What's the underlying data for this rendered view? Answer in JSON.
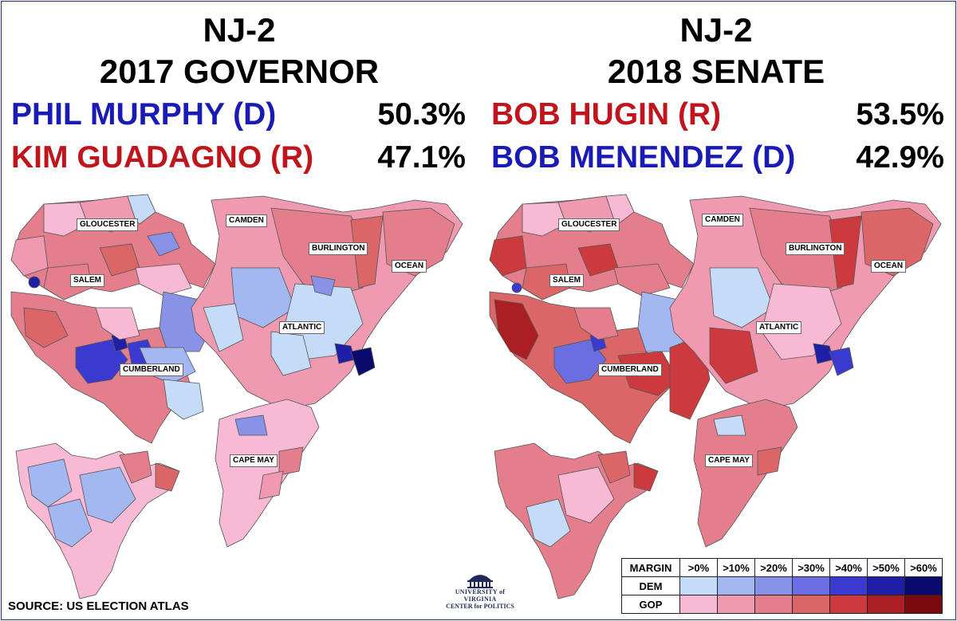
{
  "left_panel": {
    "title_line1": "NJ-2",
    "title_line2": "2017 GOVERNOR",
    "candidates": [
      {
        "name": "PHIL MURPHY (D)",
        "pct": "50.3%",
        "color": "#1a1ab4"
      },
      {
        "name": "KIM GUADAGNO (R)",
        "pct": "47.1%",
        "color": "#c0151c"
      }
    ],
    "county_labels": [
      "GLOUCESTER",
      "CAMDEN",
      "BURLINGTON",
      "OCEAN",
      "SALEM",
      "ATLANTIC",
      "CUMBERLAND",
      "CAPE MAY"
    ]
  },
  "right_panel": {
    "title_line1": "NJ-2",
    "title_line2": "2018 SENATE",
    "candidates": [
      {
        "name": "BOB HUGIN (R)",
        "pct": "53.5%",
        "color": "#c0151c"
      },
      {
        "name": "BOB MENENDEZ (D)",
        "pct": "42.9%",
        "color": "#1a1ab4"
      }
    ],
    "county_labels": [
      "GLOUCESTER",
      "CAMDEN",
      "BURLINGTON",
      "OCEAN",
      "SALEM",
      "ATLANTIC",
      "CUMBERLAND",
      "CAPE MAY"
    ]
  },
  "legend": {
    "header_label": "MARGIN",
    "bins": [
      ">0%",
      ">10%",
      ">20%",
      ">30%",
      ">40%",
      ">50%",
      ">60%"
    ],
    "dem_label": "DEM",
    "gop_label": "GOP",
    "dem_colors": [
      "#c4dcf7",
      "#a3b8f0",
      "#8893e8",
      "#6a6ee0",
      "#3a3ad0",
      "#1f1fa6",
      "#0b0b6e"
    ],
    "gop_colors": [
      "#f7b9d4",
      "#ef9ab0",
      "#e47e8c",
      "#da6668",
      "#cc3a3e",
      "#ab1e24",
      "#7a0a10"
    ]
  },
  "source": "SOURCE: US ELECTION ATLAS",
  "logo": {
    "line1": "UNIVERSITY of VIRGINIA",
    "line2": "CENTER for POLITICS"
  }
}
